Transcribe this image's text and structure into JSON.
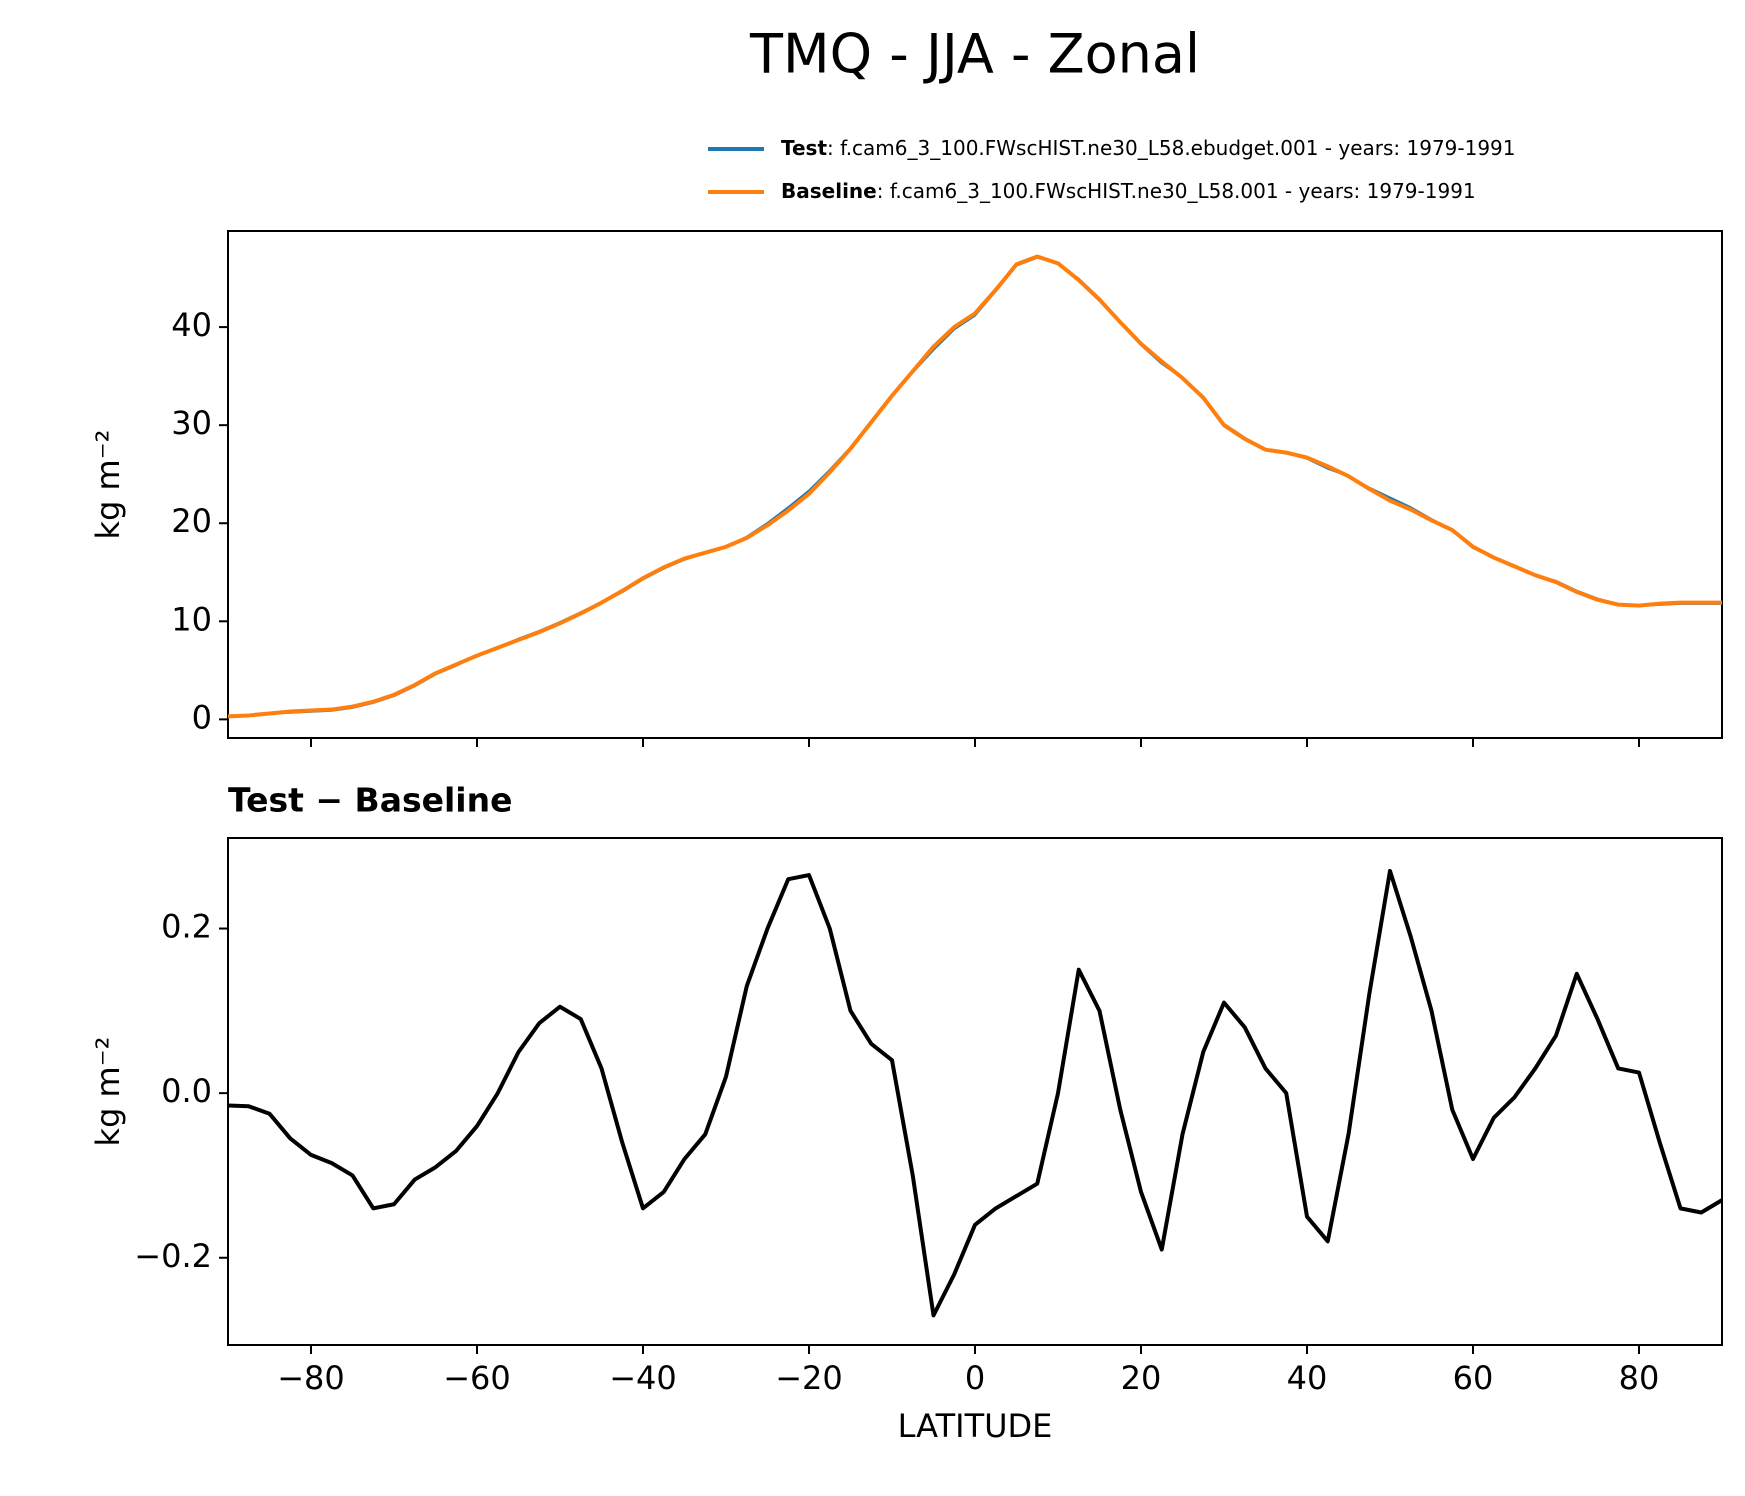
{
  "title": "TMQ - JJA - Zonal",
  "chart_data": [
    {
      "type": "line",
      "x": [
        -90,
        -87.5,
        -85,
        -82.5,
        -80,
        -77.5,
        -75,
        -72.5,
        -70,
        -67.5,
        -65,
        -62.5,
        -60,
        -57.5,
        -55,
        -52.5,
        -50,
        -47.5,
        -45,
        -42.5,
        -40,
        -37.5,
        -35,
        -32.5,
        -30,
        -27.5,
        -25,
        -22.5,
        -20,
        -17.5,
        -15,
        -12.5,
        -10,
        -7.5,
        -5,
        -2.5,
        0,
        2.5,
        5,
        7.5,
        10,
        12.5,
        15,
        17.5,
        20,
        22.5,
        25,
        27.5,
        30,
        32.5,
        35,
        37.5,
        40,
        42.5,
        45,
        47.5,
        50,
        52.5,
        55,
        57.5,
        60,
        62.5,
        65,
        67.5,
        70,
        72.5,
        75,
        77.5,
        80,
        82.5,
        85,
        87.5,
        90
      ],
      "series": [
        {
          "name": "Test",
          "label": ": f.cam6_3_100.FWscHIST.ne30_L58.ebudget.001 - years: 1979-1991",
          "color": "#1f77b4",
          "values": [
            0.3,
            0.4,
            0.6,
            0.7,
            0.8,
            0.9,
            1.2,
            1.7,
            2.4,
            3.4,
            4.6,
            5.5,
            6.5,
            7.3,
            8.2,
            9.0,
            9.9,
            10.9,
            11.9,
            13.0,
            14.3,
            15.4,
            16.3,
            17.0,
            17.6,
            18.6,
            20.0,
            21.6,
            23.3,
            25.4,
            27.7,
            30.4,
            33.0,
            35.4,
            37.7,
            39.8,
            41.2,
            43.7,
            46.3,
            47.1,
            46.5,
            44.9,
            42.9,
            40.5,
            38.2,
            36.3,
            34.8,
            32.9,
            30.1,
            28.7,
            27.5,
            27.2,
            26.6,
            25.6,
            24.8,
            23.6,
            22.6,
            21.6,
            20.4,
            19.3,
            17.5,
            16.5,
            15.6,
            14.7,
            14.1,
            13.1,
            12.3,
            11.7,
            11.6,
            11.7,
            11.8,
            11.8,
            11.8
          ]
        },
        {
          "name": "Baseline",
          "label": ": f.cam6_3_100.FWscHIST.ne30_L58.001 - years: 1979-1991",
          "color": "#ff7f0e",
          "values": [
            0.3,
            0.4,
            0.6,
            0.8,
            0.9,
            1.0,
            1.3,
            1.8,
            2.5,
            3.5,
            4.7,
            5.6,
            6.5,
            7.3,
            8.1,
            8.9,
            9.8,
            10.8,
            11.9,
            13.1,
            14.4,
            15.5,
            16.4,
            17.0,
            17.6,
            18.5,
            19.8,
            21.3,
            23.0,
            25.2,
            27.6,
            30.3,
            33.0,
            35.5,
            38.0,
            40.0,
            41.4,
            43.8,
            46.4,
            47.2,
            46.5,
            44.8,
            42.8,
            40.5,
            38.3,
            36.5,
            34.8,
            32.8,
            30.0,
            28.6,
            27.5,
            27.2,
            26.7,
            25.8,
            24.8,
            23.5,
            22.3,
            21.4,
            20.3,
            19.3,
            17.6,
            16.5,
            15.6,
            14.7,
            14.0,
            13.0,
            12.2,
            11.7,
            11.6,
            11.8,
            11.9,
            11.9,
            11.9
          ]
        }
      ],
      "ylabel": "kg m⁻²",
      "xlim": [
        -90,
        90
      ],
      "ylim": [
        -1.9,
        49.8
      ],
      "xticks": [
        -80,
        -60,
        -40,
        -20,
        0,
        20,
        40,
        60,
        80
      ],
      "yticks": [
        0,
        10,
        20,
        30,
        40
      ]
    },
    {
      "type": "line",
      "title": "Test − Baseline",
      "x": [
        -90,
        -87.5,
        -85,
        -82.5,
        -80,
        -77.5,
        -75,
        -72.5,
        -70,
        -67.5,
        -65,
        -62.5,
        -60,
        -57.5,
        -55,
        -52.5,
        -50,
        -47.5,
        -45,
        -42.5,
        -40,
        -37.5,
        -35,
        -32.5,
        -30,
        -27.5,
        -25,
        -22.5,
        -20,
        -17.5,
        -15,
        -12.5,
        -10,
        -7.5,
        -5,
        -2.5,
        0,
        2.5,
        5,
        7.5,
        10,
        12.5,
        15,
        17.5,
        20,
        22.5,
        25,
        27.5,
        30,
        32.5,
        35,
        37.5,
        40,
        42.5,
        45,
        47.5,
        50,
        52.5,
        55,
        57.5,
        60,
        62.5,
        65,
        67.5,
        70,
        72.5,
        75,
        77.5,
        80,
        82.5,
        85,
        87.5,
        90
      ],
      "series": [
        {
          "color": "#000000",
          "values": [
            -0.015,
            -0.016,
            -0.025,
            -0.055,
            -0.075,
            -0.085,
            -0.1,
            -0.14,
            -0.135,
            -0.105,
            -0.09,
            -0.07,
            -0.04,
            0.0,
            0.05,
            0.085,
            0.105,
            0.09,
            0.03,
            -0.06,
            -0.14,
            -0.12,
            -0.08,
            -0.05,
            0.02,
            0.13,
            0.2,
            0.26,
            0.265,
            0.2,
            0.1,
            0.06,
            0.04,
            -0.1,
            -0.27,
            -0.22,
            -0.16,
            -0.14,
            -0.125,
            -0.11,
            0.0,
            0.15,
            0.1,
            -0.02,
            -0.12,
            -0.19,
            -0.05,
            0.05,
            0.11,
            0.08,
            0.03,
            0.0,
            -0.15,
            -0.18,
            -0.05,
            0.12,
            0.27,
            0.19,
            0.1,
            -0.02,
            -0.08,
            -0.03,
            -0.005,
            0.03,
            0.07,
            0.145,
            0.09,
            0.03,
            0.025,
            -0.06,
            -0.14,
            -0.145,
            -0.13
          ]
        }
      ],
      "ylabel": "kg m⁻²",
      "xlabel": "LATITUDE",
      "xlim": [
        -90,
        90
      ],
      "ylim": [
        -0.306,
        0.31
      ],
      "xticks": [
        {
          "value": -80,
          "label": "−80"
        },
        {
          "value": -60,
          "label": "−60"
        },
        {
          "value": -40,
          "label": "−40"
        },
        {
          "value": -20,
          "label": "−20"
        },
        0,
        20,
        40,
        60,
        80
      ],
      "yticks": [
        {
          "value": -0.2,
          "label": "−0.2"
        },
        {
          "value": 0,
          "label": "0.0"
        },
        {
          "value": 0.2,
          "label": "0.2"
        }
      ]
    }
  ]
}
